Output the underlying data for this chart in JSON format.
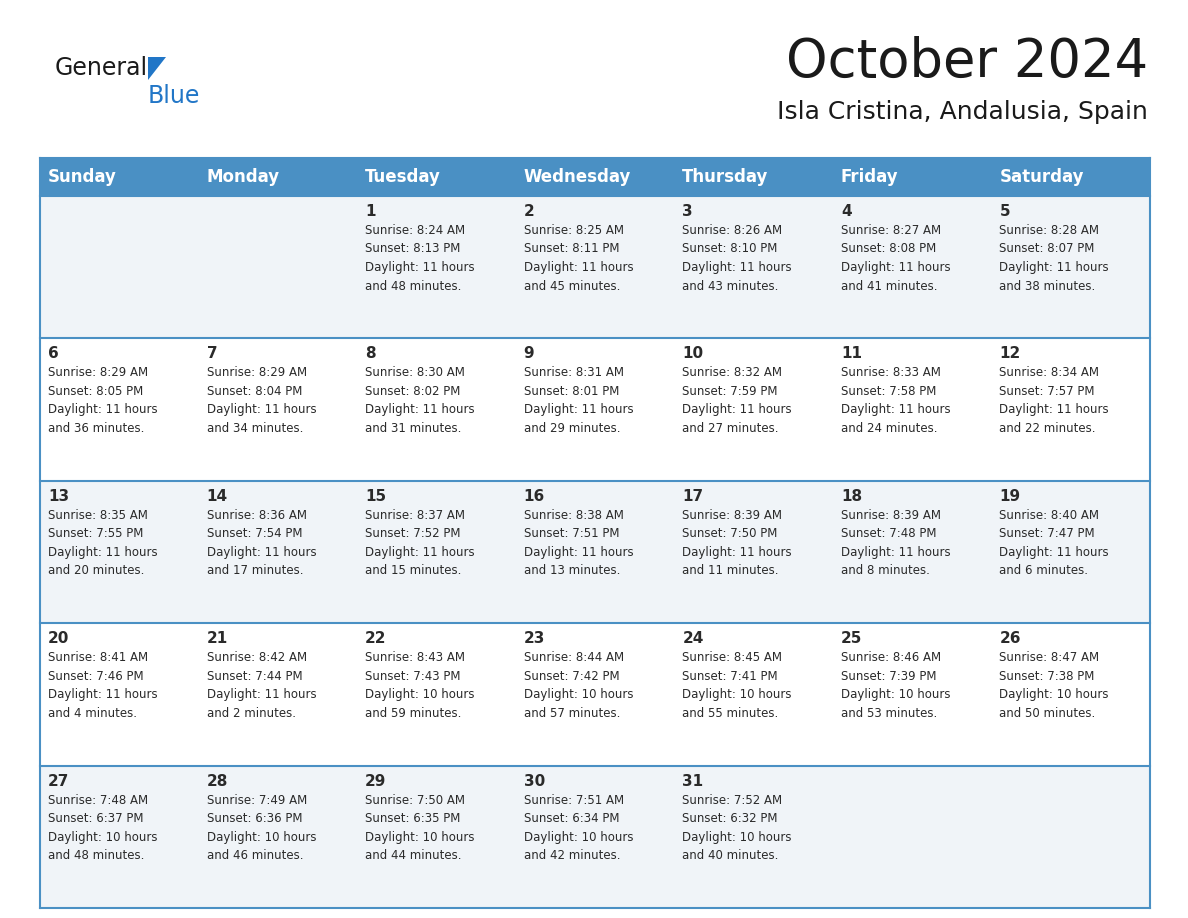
{
  "title": "October 2024",
  "subtitle": "Isla Cristina, Andalusia, Spain",
  "header_bg": "#4a90c4",
  "header_text_color": "#ffffff",
  "cell_bg_odd": "#f0f4f8",
  "cell_bg_even": "#ffffff",
  "border_color": "#4a90c4",
  "text_color": "#2a2a2a",
  "days_of_week": [
    "Sunday",
    "Monday",
    "Tuesday",
    "Wednesday",
    "Thursday",
    "Friday",
    "Saturday"
  ],
  "weeks": [
    [
      {
        "day": "",
        "info": ""
      },
      {
        "day": "",
        "info": ""
      },
      {
        "day": "1",
        "info": "Sunrise: 8:24 AM\nSunset: 8:13 PM\nDaylight: 11 hours\nand 48 minutes."
      },
      {
        "day": "2",
        "info": "Sunrise: 8:25 AM\nSunset: 8:11 PM\nDaylight: 11 hours\nand 45 minutes."
      },
      {
        "day": "3",
        "info": "Sunrise: 8:26 AM\nSunset: 8:10 PM\nDaylight: 11 hours\nand 43 minutes."
      },
      {
        "day": "4",
        "info": "Sunrise: 8:27 AM\nSunset: 8:08 PM\nDaylight: 11 hours\nand 41 minutes."
      },
      {
        "day": "5",
        "info": "Sunrise: 8:28 AM\nSunset: 8:07 PM\nDaylight: 11 hours\nand 38 minutes."
      }
    ],
    [
      {
        "day": "6",
        "info": "Sunrise: 8:29 AM\nSunset: 8:05 PM\nDaylight: 11 hours\nand 36 minutes."
      },
      {
        "day": "7",
        "info": "Sunrise: 8:29 AM\nSunset: 8:04 PM\nDaylight: 11 hours\nand 34 minutes."
      },
      {
        "day": "8",
        "info": "Sunrise: 8:30 AM\nSunset: 8:02 PM\nDaylight: 11 hours\nand 31 minutes."
      },
      {
        "day": "9",
        "info": "Sunrise: 8:31 AM\nSunset: 8:01 PM\nDaylight: 11 hours\nand 29 minutes."
      },
      {
        "day": "10",
        "info": "Sunrise: 8:32 AM\nSunset: 7:59 PM\nDaylight: 11 hours\nand 27 minutes."
      },
      {
        "day": "11",
        "info": "Sunrise: 8:33 AM\nSunset: 7:58 PM\nDaylight: 11 hours\nand 24 minutes."
      },
      {
        "day": "12",
        "info": "Sunrise: 8:34 AM\nSunset: 7:57 PM\nDaylight: 11 hours\nand 22 minutes."
      }
    ],
    [
      {
        "day": "13",
        "info": "Sunrise: 8:35 AM\nSunset: 7:55 PM\nDaylight: 11 hours\nand 20 minutes."
      },
      {
        "day": "14",
        "info": "Sunrise: 8:36 AM\nSunset: 7:54 PM\nDaylight: 11 hours\nand 17 minutes."
      },
      {
        "day": "15",
        "info": "Sunrise: 8:37 AM\nSunset: 7:52 PM\nDaylight: 11 hours\nand 15 minutes."
      },
      {
        "day": "16",
        "info": "Sunrise: 8:38 AM\nSunset: 7:51 PM\nDaylight: 11 hours\nand 13 minutes."
      },
      {
        "day": "17",
        "info": "Sunrise: 8:39 AM\nSunset: 7:50 PM\nDaylight: 11 hours\nand 11 minutes."
      },
      {
        "day": "18",
        "info": "Sunrise: 8:39 AM\nSunset: 7:48 PM\nDaylight: 11 hours\nand 8 minutes."
      },
      {
        "day": "19",
        "info": "Sunrise: 8:40 AM\nSunset: 7:47 PM\nDaylight: 11 hours\nand 6 minutes."
      }
    ],
    [
      {
        "day": "20",
        "info": "Sunrise: 8:41 AM\nSunset: 7:46 PM\nDaylight: 11 hours\nand 4 minutes."
      },
      {
        "day": "21",
        "info": "Sunrise: 8:42 AM\nSunset: 7:44 PM\nDaylight: 11 hours\nand 2 minutes."
      },
      {
        "day": "22",
        "info": "Sunrise: 8:43 AM\nSunset: 7:43 PM\nDaylight: 10 hours\nand 59 minutes."
      },
      {
        "day": "23",
        "info": "Sunrise: 8:44 AM\nSunset: 7:42 PM\nDaylight: 10 hours\nand 57 minutes."
      },
      {
        "day": "24",
        "info": "Sunrise: 8:45 AM\nSunset: 7:41 PM\nDaylight: 10 hours\nand 55 minutes."
      },
      {
        "day": "25",
        "info": "Sunrise: 8:46 AM\nSunset: 7:39 PM\nDaylight: 10 hours\nand 53 minutes."
      },
      {
        "day": "26",
        "info": "Sunrise: 8:47 AM\nSunset: 7:38 PM\nDaylight: 10 hours\nand 50 minutes."
      }
    ],
    [
      {
        "day": "27",
        "info": "Sunrise: 7:48 AM\nSunset: 6:37 PM\nDaylight: 10 hours\nand 48 minutes."
      },
      {
        "day": "28",
        "info": "Sunrise: 7:49 AM\nSunset: 6:36 PM\nDaylight: 10 hours\nand 46 minutes."
      },
      {
        "day": "29",
        "info": "Sunrise: 7:50 AM\nSunset: 6:35 PM\nDaylight: 10 hours\nand 44 minutes."
      },
      {
        "day": "30",
        "info": "Sunrise: 7:51 AM\nSunset: 6:34 PM\nDaylight: 10 hours\nand 42 minutes."
      },
      {
        "day": "31",
        "info": "Sunrise: 7:52 AM\nSunset: 6:32 PM\nDaylight: 10 hours\nand 40 minutes."
      },
      {
        "day": "",
        "info": ""
      },
      {
        "day": "",
        "info": ""
      }
    ]
  ],
  "logo_general_color": "#1a1a1a",
  "logo_blue_color": "#2176c7",
  "logo_triangle_color": "#2176c7",
  "title_fontsize": 38,
  "subtitle_fontsize": 18,
  "header_fontsize": 12,
  "day_num_fontsize": 11,
  "cell_text_fontsize": 8.5
}
